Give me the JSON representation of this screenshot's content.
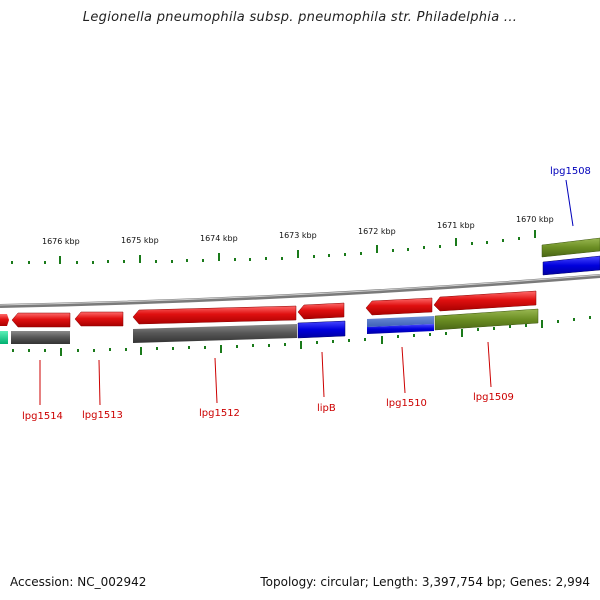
{
  "title": "Legionella pneumophila subsp. pneumophila str. Philadelphia ...",
  "accession": "Accession: NC_002942",
  "summary": "Topology: circular; Length: 3,397,754 bp; Genes: 2,994",
  "tick_labels": [
    "1676 kbp",
    "1675 kbp",
    "1674 kbp",
    "1673 kbp",
    "1672 kbp",
    "1671 kbp",
    "1670 kbp"
  ],
  "gene_labels": [
    "lpg1514",
    "lpg1513",
    "lpg1512",
    "lipB",
    "lpg1510",
    "lpg1509",
    "lpg1508"
  ],
  "colors": {
    "cds_red": "#e01010",
    "rna_gray": "#555555",
    "blue": "#0000dd",
    "olive": "#6b8e23",
    "teal": "#00d68f",
    "label_red": "#cc0000",
    "label_blue": "#0000bb",
    "tick_green": "#1a7a1a",
    "backbone": "#808080"
  }
}
